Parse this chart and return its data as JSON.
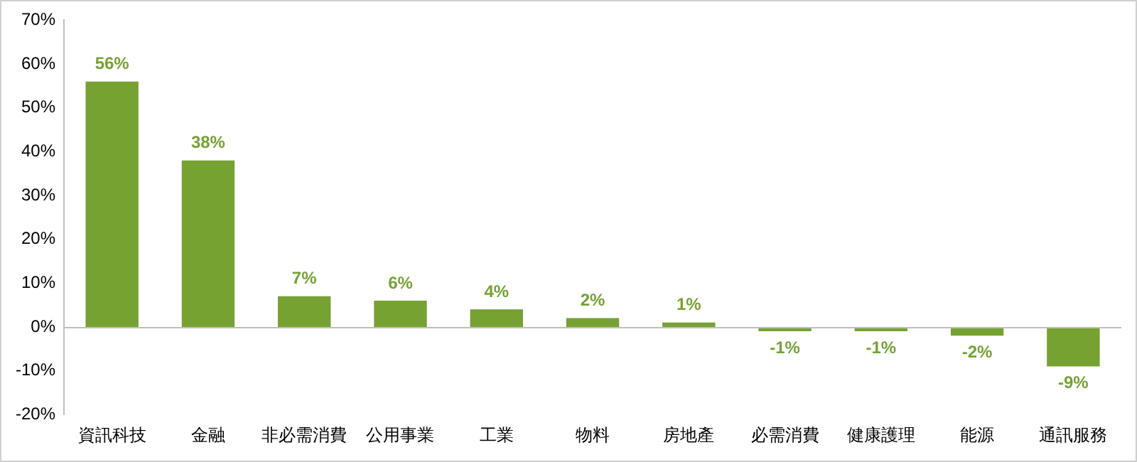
{
  "chart_data": {
    "type": "bar",
    "categories": [
      "資訊科技",
      "金融",
      "非必需消費",
      "公用事業",
      "工業",
      "物料",
      "房地產",
      "必需消費",
      "健康護理",
      "能源",
      "通訊服務"
    ],
    "values": [
      56,
      38,
      7,
      6,
      4,
      2,
      1,
      -1,
      -1,
      -2,
      -9
    ],
    "value_labels": [
      "56%",
      "38%",
      "7%",
      "6%",
      "4%",
      "2%",
      "1%",
      "-1%",
      "-1%",
      "-2%",
      "-9%"
    ],
    "color": "#76a232",
    "ylim": [
      -20,
      70
    ],
    "yticks": [
      {
        "value": -20,
        "label": "-20%"
      },
      {
        "value": -10,
        "label": "-10%"
      },
      {
        "value": 0,
        "label": "0%"
      },
      {
        "value": 10,
        "label": "10%"
      },
      {
        "value": 20,
        "label": "20%"
      },
      {
        "value": 30,
        "label": "30%"
      },
      {
        "value": 40,
        "label": "40%"
      },
      {
        "value": 50,
        "label": "50%"
      },
      {
        "value": 60,
        "label": "60%"
      },
      {
        "value": 70,
        "label": "70%"
      }
    ],
    "ref_lines": [
      {
        "axis": "y",
        "value": 0,
        "color": "#bfbfbf"
      }
    ],
    "grid": false,
    "legend": false
  }
}
